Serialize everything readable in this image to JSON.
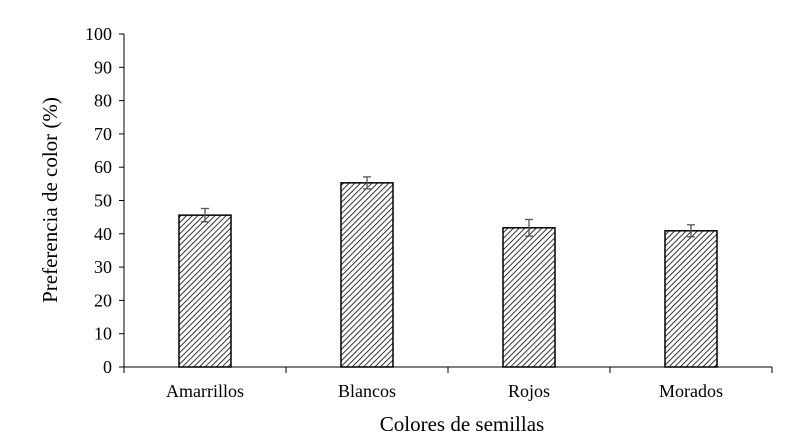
{
  "chart_data": {
    "type": "bar",
    "title": "",
    "xlabel": "Colores de semillas",
    "ylabel": "Preferencia de color (%)",
    "categories": [
      "Amarrillos",
      "Blancos",
      "Rojos",
      "Morados"
    ],
    "values": [
      45.6,
      55.3,
      41.8,
      40.9
    ],
    "errors": [
      2.0,
      1.8,
      2.5,
      1.8
    ],
    "ylim": [
      0,
      100
    ],
    "ytick_step": 10,
    "yticks": [
      "0",
      "10",
      "20",
      "30",
      "40",
      "50",
      "60",
      "70",
      "80",
      "90",
      "100"
    ],
    "grid": false,
    "legend": "none",
    "bar_fill": "diagonal-hatch",
    "colors": {
      "bar_stroke": "#000000",
      "hatch": "#000000",
      "axis": "#000000",
      "error_bar": "#555555"
    }
  }
}
